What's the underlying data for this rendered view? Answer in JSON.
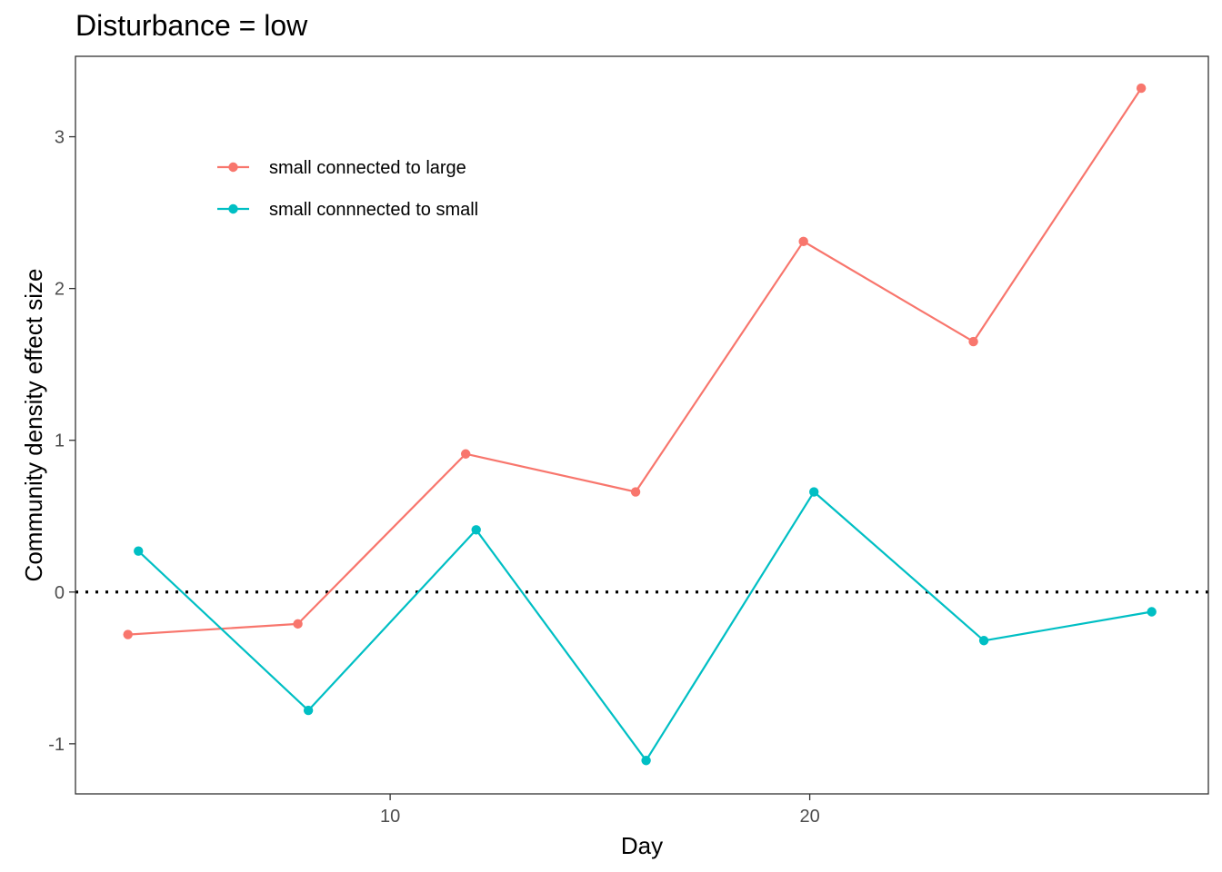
{
  "chart_data": {
    "type": "line",
    "title": "Disturbance = low",
    "xlabel": "Day",
    "ylabel": "Community density effect size",
    "xlim": [
      2.5,
      29.5
    ],
    "ylim": [
      -1.33,
      3.53
    ],
    "x_ticks": [
      10,
      20
    ],
    "y_ticks": [
      -1,
      0,
      1,
      2,
      3
    ],
    "reference_line": {
      "y": 0,
      "style": "dotted"
    },
    "grid": false,
    "legend_position": "top-left inside",
    "series": [
      {
        "name": "small connected to large",
        "color": "#F8766D",
        "x": [
          3.75,
          7.8,
          11.8,
          15.85,
          19.85,
          23.9,
          27.9
        ],
        "y": [
          -0.28,
          -0.21,
          0.91,
          0.66,
          2.31,
          1.65,
          3.32
        ]
      },
      {
        "name": "small connnected to small",
        "color": "#00BFC4",
        "x": [
          4.0,
          8.05,
          12.05,
          16.1,
          20.1,
          24.15,
          28.15
        ],
        "y": [
          0.27,
          -0.78,
          0.41,
          -1.11,
          0.66,
          -0.32,
          -0.13
        ]
      }
    ]
  }
}
